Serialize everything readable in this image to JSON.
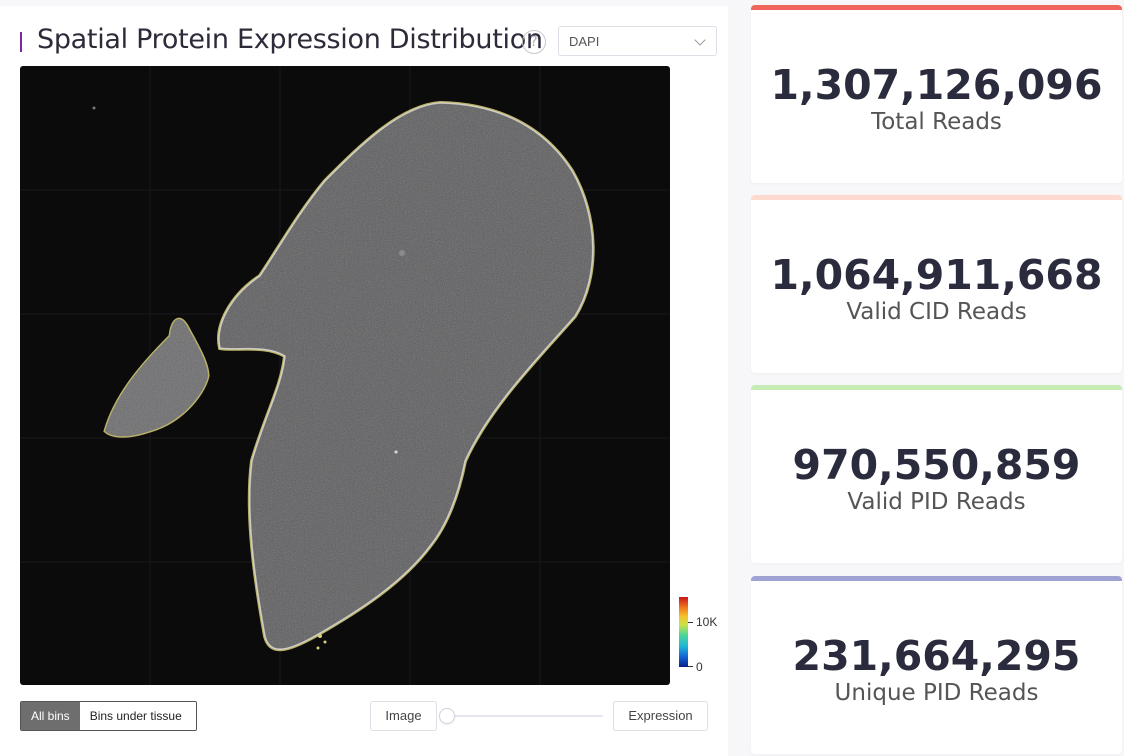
{
  "panel": {
    "title": "Spatial Protein Expression Distribution",
    "help_glyph": "?",
    "channel_select": {
      "value": "DAPI"
    }
  },
  "colorbar": {
    "max_label": "10K",
    "min_label": "0"
  },
  "controls": {
    "bins_all_label": "All bins",
    "bins_tissue_label": "Bins under tissue",
    "image_label": "Image",
    "expression_label": "Expression",
    "blend_fraction": 0.0
  },
  "stats": [
    {
      "value": "1,307,126,096",
      "label": "Total Reads",
      "color": "#f0665a"
    },
    {
      "value": "1,064,911,668",
      "label": "Valid CID Reads",
      "color": "#fdd9cf"
    },
    {
      "value": "970,550,859",
      "label": "Valid PID Reads",
      "color": "#c5ecb4"
    },
    {
      "value": "231,664,295",
      "label": "Unique PID Reads",
      "color": "#9ea3d3"
    }
  ]
}
